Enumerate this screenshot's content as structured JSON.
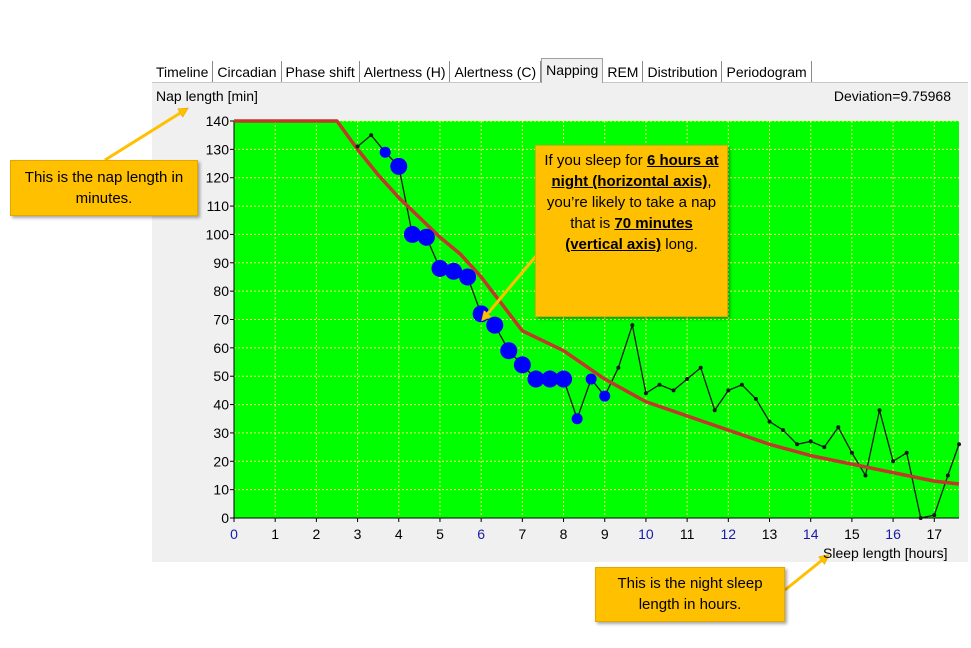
{
  "tabs": [
    {
      "label": "Timeline",
      "active": false
    },
    {
      "label": "Circadian",
      "active": false
    },
    {
      "label": "Phase shift",
      "active": false
    },
    {
      "label": "Alertness (H)",
      "active": false
    },
    {
      "label": "Alertness (C)",
      "active": false
    },
    {
      "label": "Napping",
      "active": true
    },
    {
      "label": "REM",
      "active": false
    },
    {
      "label": "Distribution",
      "active": false
    },
    {
      "label": "Periodogram",
      "active": false
    }
  ],
  "header": {
    "ylabel": "Nap length [min]",
    "deviation": "Deviation=9.75968"
  },
  "xlabel_text": "Sleep length [hours]",
  "callouts": {
    "nap_length": {
      "text": "This is the nap length in minutes."
    },
    "example": {
      "p1": "If you sleep for ",
      "b1": "6 hours at night (horizontal axis)",
      "p2": ", you’re likely to take a nap that is ",
      "b2": "70 minutes (vertical axis)",
      "p3": " long."
    },
    "sleep_length": {
      "text": "This is the night sleep length in hours."
    }
  },
  "colors": {
    "plot_bg": "#00ff00",
    "grid": "#ffff66",
    "curve": "#c0392b",
    "dots": "#0000ff",
    "line": "#1a1a1a",
    "tick_blue": "#1a1aa8"
  },
  "chart_data": {
    "type": "line",
    "title": "",
    "xlabel": "Sleep length [hours]",
    "ylabel": "Nap length [min]",
    "xlim": [
      0,
      17.6
    ],
    "ylim": [
      0,
      140
    ],
    "xticks": [
      0,
      1,
      2,
      3,
      4,
      5,
      6,
      7,
      8,
      9,
      10,
      11,
      12,
      13,
      14,
      15,
      16,
      17
    ],
    "yticks": [
      0,
      10,
      20,
      30,
      40,
      50,
      60,
      70,
      80,
      90,
      100,
      110,
      120,
      130,
      140
    ],
    "grid": true,
    "series": [
      {
        "name": "observed",
        "x": [
          3.0,
          3.33,
          3.67,
          4.0,
          4.33,
          4.67,
          5.0,
          5.33,
          5.67,
          6.0,
          6.33,
          6.67,
          7.0,
          7.33,
          7.67,
          8.0,
          8.33,
          8.67,
          9.0,
          9.33,
          9.67,
          10.0,
          10.33,
          10.67,
          11.0,
          11.33,
          11.67,
          12.0,
          12.33,
          12.67,
          13.0,
          13.33,
          13.67,
          14.0,
          14.33,
          14.67,
          15.0,
          15.33,
          15.67,
          16.0,
          16.33,
          16.67,
          17.0,
          17.33,
          17.6
        ],
        "y": [
          131,
          135,
          129,
          124,
          100,
          99,
          88,
          87,
          85,
          72,
          68,
          59,
          54,
          49,
          49,
          49,
          35,
          49,
          43,
          53,
          68,
          44,
          47,
          45,
          49,
          53,
          38,
          45,
          47,
          42,
          34,
          31,
          26,
          27,
          25,
          32,
          23,
          15,
          38,
          20,
          23,
          0,
          1,
          15,
          26
        ],
        "weight": [
          1,
          1,
          2,
          3,
          3,
          3,
          3,
          3,
          3,
          3,
          3,
          3,
          3,
          3,
          3,
          3,
          2,
          2,
          2,
          1,
          1,
          1,
          1,
          1,
          1,
          1,
          1,
          1,
          1,
          1,
          1,
          1,
          1,
          1,
          1,
          1,
          1,
          1,
          1,
          1,
          1,
          1,
          1,
          1,
          1
        ]
      },
      {
        "name": "fitted curve",
        "x": [
          0,
          2.3,
          2.5,
          3,
          3.5,
          4,
          4.5,
          5,
          5.5,
          6,
          7,
          8,
          9,
          10,
          11,
          12,
          13,
          14,
          15,
          16,
          17,
          17.6
        ],
        "y": [
          140,
          140,
          140,
          130,
          121,
          113,
          106,
          99,
          93,
          85,
          66,
          59,
          49,
          41,
          36,
          31,
          26,
          22,
          19,
          16,
          13,
          12
        ]
      }
    ]
  }
}
